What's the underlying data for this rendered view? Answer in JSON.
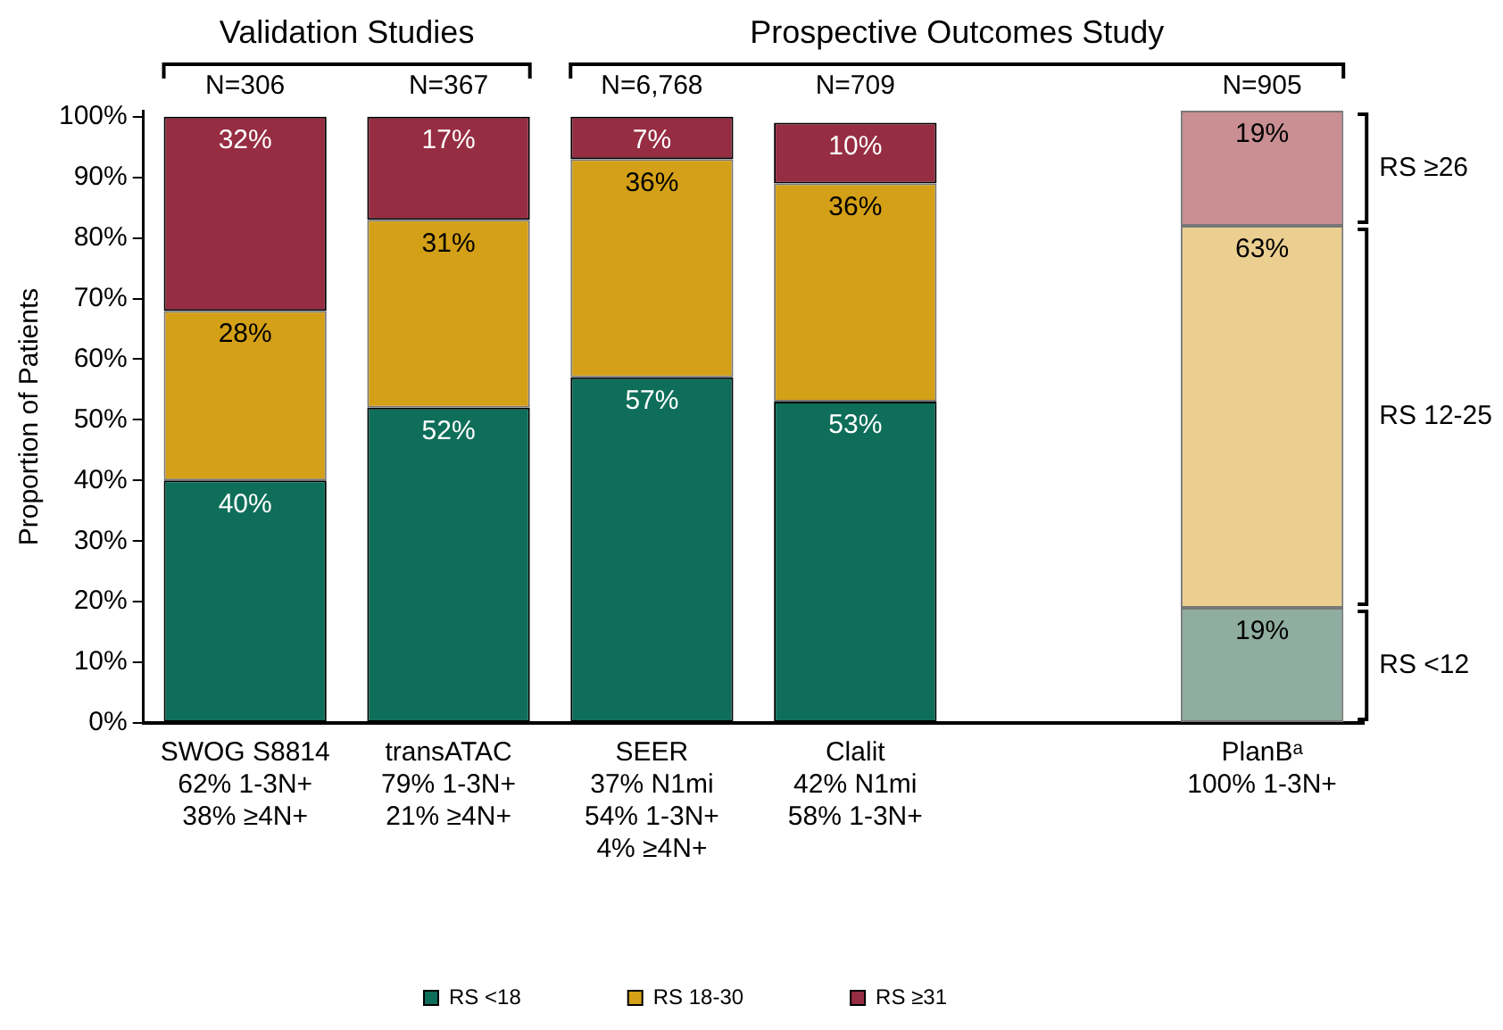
{
  "chart_data": {
    "type": "bar",
    "stacked": true,
    "ylabel": "Proportion of Patients",
    "categories": [
      "SWOG S8814\n62% 1-3N+\n38% ≥4N+",
      "transATAC\n79% 1-3N+\n21% ≥4N+",
      "SEER\n37% N1mi\n54% 1-3N+\n4% ≥4N+",
      "Clalit\n42% N1mi\n58% 1-3N+",
      null,
      "PlanBᵃ\n100% 1-3N+"
    ],
    "series": [
      {
        "name": "RS <18",
        "color": "#0e6e5a",
        "colors": [
          "#0e6e5a",
          "#0e6e5a",
          "#0e6e5a",
          "#0e6e5a",
          null,
          "#8fada0"
        ],
        "values": [
          40,
          52,
          57,
          53,
          null,
          19
        ],
        "value_labels": [
          "40%",
          "52%",
          "57%",
          "53%",
          null,
          "19%"
        ]
      },
      {
        "name": "RS 18-30",
        "color": "#d4a017",
        "colors": [
          "#d4a017",
          "#d4a017",
          "#d4a017",
          "#d4a017",
          null,
          "#ebcf91"
        ],
        "values": [
          28,
          31,
          36,
          36,
          null,
          63
        ],
        "value_labels": [
          "28%",
          "31%",
          "36%",
          "36%",
          null,
          "63%"
        ]
      },
      {
        "name": "RS ≥31",
        "color": "#962d42",
        "colors": [
          "#962d42",
          "#962d42",
          "#962d42",
          "#962d42",
          null,
          "#c98f93"
        ],
        "values": [
          32,
          17,
          7,
          10,
          null,
          19
        ],
        "value_labels": [
          "32%",
          "17%",
          "7%",
          "10%",
          null,
          "19%"
        ]
      }
    ],
    "ylim": [
      0,
      101
    ],
    "yticks": [
      {
        "value": 0,
        "label": "0%"
      },
      {
        "value": 10,
        "label": "10%"
      },
      {
        "value": 20,
        "label": "20%"
      },
      {
        "value": 30,
        "label": "30%"
      },
      {
        "value": 40,
        "label": "40%"
      },
      {
        "value": 50,
        "label": "50%"
      },
      {
        "value": 60,
        "label": "60%"
      },
      {
        "value": 70,
        "label": "70%"
      },
      {
        "value": 80,
        "label": "80%"
      },
      {
        "value": 90,
        "label": "90%"
      },
      {
        "value": 100,
        "label": "100%"
      }
    ],
    "grid": false,
    "legend": "bottom",
    "annotations": [
      "Validation Studies",
      "Prospective Outcomes Study",
      "N=306",
      "N=367",
      "N=6,768",
      "N=709",
      "N=905",
      "RS ≥26",
      "RS 12-25",
      "RS <12"
    ]
  }
}
